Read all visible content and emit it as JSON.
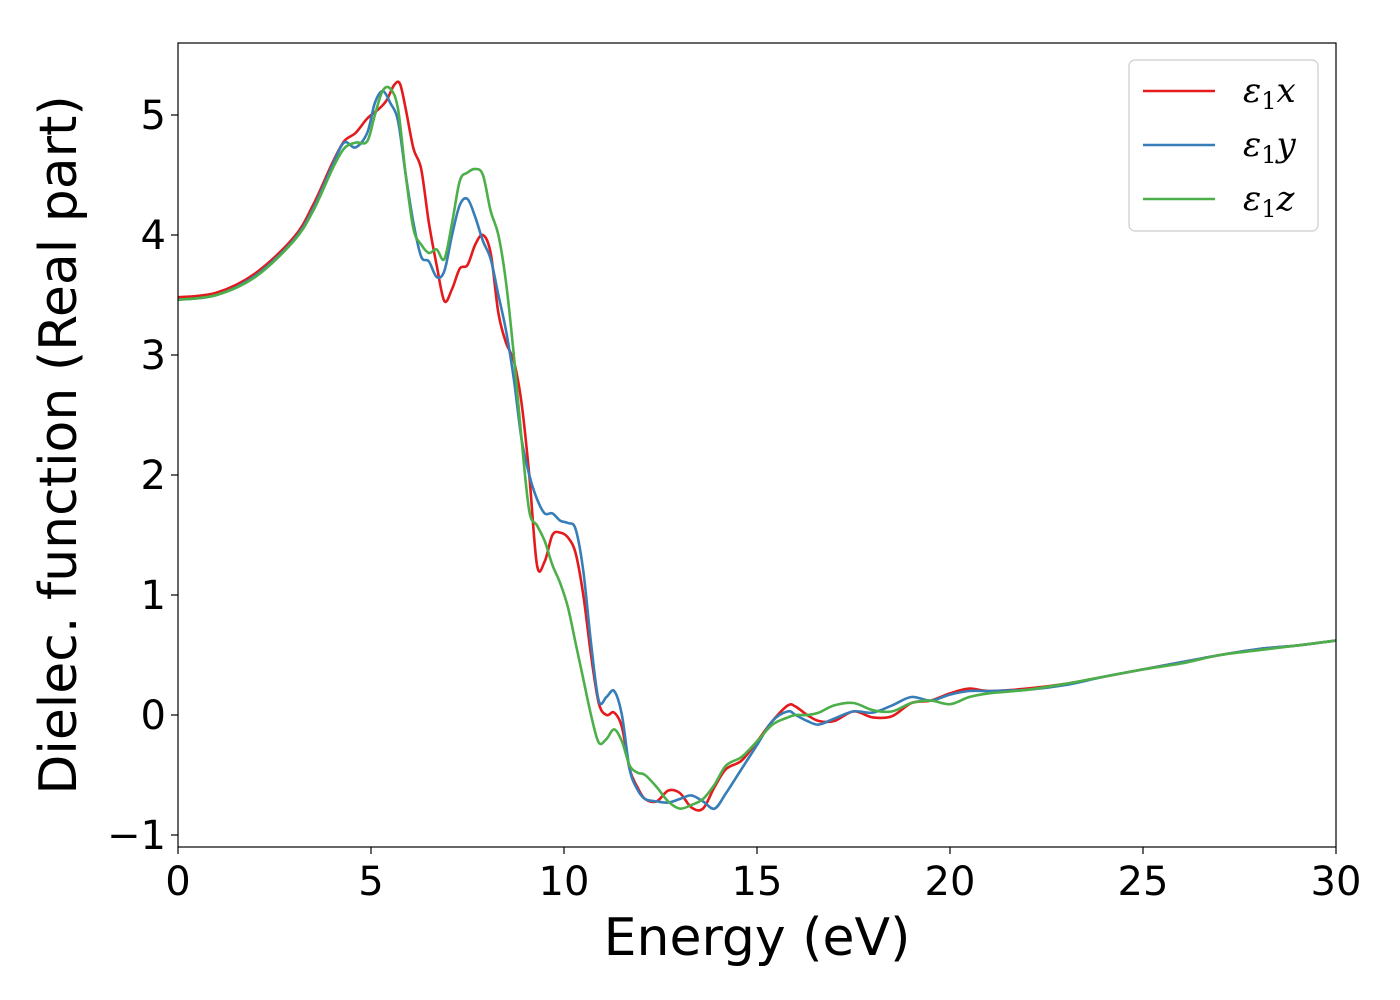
{
  "chart_data": {
    "type": "line",
    "title": "",
    "xlabel": "Energy (eV)",
    "ylabel": "Dielec. function (Real part)",
    "xlim": [
      0,
      30
    ],
    "ylim": [
      -1.1,
      5.6
    ],
    "xticks": [
      0,
      5,
      10,
      15,
      20,
      25,
      30
    ],
    "yticks": [
      -1,
      0,
      1,
      2,
      3,
      4,
      5
    ],
    "xtick_labels": [
      "0",
      "5",
      "10",
      "15",
      "20",
      "25",
      "30"
    ],
    "ytick_labels": [
      "−1",
      "0",
      "1",
      "2",
      "3",
      "4",
      "5"
    ],
    "grid": false,
    "legend_position": "top-right",
    "series": [
      {
        "name": "ε₁x",
        "legend_main": "ε",
        "legend_sub": "1",
        "legend_var": "x",
        "color": "#e41a1c",
        "x": [
          0,
          1,
          2,
          3,
          3.5,
          4,
          4.3,
          4.6,
          4.9,
          5.2,
          5.4,
          5.6,
          5.75,
          5.9,
          6.1,
          6.3,
          6.5,
          6.7,
          6.9,
          7.1,
          7.3,
          7.5,
          7.7,
          7.9,
          8.1,
          8.3,
          8.5,
          8.7,
          8.9,
          9.1,
          9.3,
          9.5,
          9.7,
          9.9,
          10.1,
          10.3,
          10.5,
          10.7,
          10.9,
          11.1,
          11.3,
          11.5,
          11.7,
          11.9,
          12.1,
          12.4,
          12.7,
          13.0,
          13.3,
          13.6,
          13.9,
          14.2,
          14.6,
          15.0,
          15.4,
          15.8,
          16.0,
          16.3,
          16.6,
          17.0,
          17.5,
          18.0,
          18.5,
          19.0,
          19.5,
          20.0,
          20.5,
          21.0,
          22.0,
          23.0,
          24.0,
          25.0,
          26.0,
          27.0,
          28.0,
          29.0,
          30.0
        ],
        "y": [
          3.48,
          3.52,
          3.68,
          3.98,
          4.25,
          4.6,
          4.78,
          4.85,
          4.97,
          5.05,
          5.12,
          5.25,
          5.26,
          5.05,
          4.72,
          4.55,
          4.1,
          3.75,
          3.45,
          3.55,
          3.72,
          3.75,
          3.92,
          4.0,
          3.85,
          3.35,
          3.1,
          2.95,
          2.6,
          2.0,
          1.25,
          1.28,
          1.5,
          1.52,
          1.48,
          1.35,
          1.0,
          0.5,
          0.1,
          0.0,
          0.02,
          -0.1,
          -0.45,
          -0.6,
          -0.7,
          -0.72,
          -0.63,
          -0.65,
          -0.77,
          -0.78,
          -0.6,
          -0.45,
          -0.38,
          -0.22,
          -0.05,
          0.08,
          0.07,
          0.0,
          -0.05,
          -0.05,
          0.03,
          -0.02,
          -0.01,
          0.1,
          0.12,
          0.18,
          0.22,
          0.2,
          0.22,
          0.26,
          0.32,
          0.38,
          0.44,
          0.5,
          0.55,
          0.58,
          0.62
        ]
      },
      {
        "name": "ε₁y",
        "legend_main": "ε",
        "legend_sub": "1",
        "legend_var": "y",
        "color": "#377eb8",
        "x": [
          0,
          1,
          2,
          3,
          3.5,
          4,
          4.3,
          4.6,
          4.9,
          5.1,
          5.3,
          5.5,
          5.7,
          5.9,
          6.1,
          6.3,
          6.5,
          6.7,
          6.9,
          7.1,
          7.3,
          7.5,
          7.7,
          7.9,
          8.1,
          8.3,
          8.5,
          8.7,
          8.9,
          9.1,
          9.3,
          9.5,
          9.7,
          9.9,
          10.1,
          10.3,
          10.5,
          10.7,
          10.9,
          11.1,
          11.3,
          11.5,
          11.7,
          11.9,
          12.1,
          12.4,
          12.7,
          13.0,
          13.3,
          13.6,
          13.9,
          14.2,
          14.6,
          15.0,
          15.4,
          15.8,
          16.0,
          16.3,
          16.6,
          17.0,
          17.5,
          18.0,
          18.5,
          19.0,
          19.5,
          20.0,
          20.5,
          21.0,
          22.0,
          23.0,
          24.0,
          25.0,
          26.0,
          27.0,
          28.0,
          29.0,
          30.0
        ],
        "y": [
          3.46,
          3.5,
          3.66,
          3.96,
          4.22,
          4.58,
          4.77,
          4.73,
          4.85,
          5.1,
          5.2,
          5.1,
          4.95,
          4.5,
          4.1,
          3.82,
          3.78,
          3.65,
          3.7,
          4.0,
          4.25,
          4.3,
          4.15,
          3.95,
          3.8,
          3.5,
          3.2,
          2.8,
          2.3,
          2.0,
          1.8,
          1.68,
          1.68,
          1.62,
          1.6,
          1.55,
          1.2,
          0.6,
          0.12,
          0.15,
          0.2,
          0.0,
          -0.45,
          -0.62,
          -0.7,
          -0.72,
          -0.73,
          -0.7,
          -0.67,
          -0.72,
          -0.78,
          -0.65,
          -0.45,
          -0.25,
          -0.05,
          0.03,
          0.0,
          -0.05,
          -0.08,
          -0.03,
          0.03,
          0.02,
          0.08,
          0.15,
          0.12,
          0.17,
          0.2,
          0.2,
          0.21,
          0.25,
          0.32,
          0.38,
          0.44,
          0.5,
          0.55,
          0.58,
          0.62
        ]
      },
      {
        "name": "ε₁z",
        "legend_main": "ε",
        "legend_sub": "1",
        "legend_var": "z",
        "color": "#4daf4a",
        "x": [
          0,
          1,
          2,
          3,
          3.5,
          4,
          4.3,
          4.6,
          4.9,
          5.1,
          5.3,
          5.5,
          5.7,
          5.9,
          6.1,
          6.3,
          6.5,
          6.7,
          6.9,
          7.1,
          7.3,
          7.5,
          7.7,
          7.9,
          8.1,
          8.3,
          8.5,
          8.7,
          8.9,
          9.1,
          9.3,
          9.5,
          9.7,
          9.9,
          10.1,
          10.3,
          10.5,
          10.7,
          10.9,
          11.1,
          11.3,
          11.5,
          11.7,
          11.9,
          12.1,
          12.4,
          12.7,
          13.0,
          13.3,
          13.6,
          13.9,
          14.2,
          14.6,
          15.0,
          15.4,
          15.8,
          16.0,
          16.3,
          16.6,
          17.0,
          17.5,
          18.0,
          18.5,
          19.0,
          19.5,
          20.0,
          20.5,
          21.0,
          22.0,
          23.0,
          24.0,
          25.0,
          26.0,
          27.0,
          28.0,
          29.0,
          30.0
        ],
        "y": [
          3.46,
          3.5,
          3.65,
          3.95,
          4.2,
          4.55,
          4.72,
          4.77,
          4.78,
          5.0,
          5.2,
          5.22,
          5.05,
          4.5,
          4.05,
          3.92,
          3.85,
          3.88,
          3.8,
          4.1,
          4.45,
          4.52,
          4.55,
          4.5,
          4.2,
          4.0,
          3.6,
          3.0,
          2.3,
          1.7,
          1.58,
          1.45,
          1.25,
          1.1,
          0.9,
          0.6,
          0.3,
          0.0,
          -0.23,
          -0.2,
          -0.12,
          -0.22,
          -0.42,
          -0.48,
          -0.5,
          -0.6,
          -0.72,
          -0.78,
          -0.75,
          -0.7,
          -0.58,
          -0.42,
          -0.35,
          -0.22,
          -0.08,
          -0.02,
          0.0,
          0.0,
          0.02,
          0.08,
          0.1,
          0.04,
          0.03,
          0.1,
          0.12,
          0.09,
          0.15,
          0.18,
          0.21,
          0.26,
          0.32,
          0.38,
          0.43,
          0.5,
          0.54,
          0.58,
          0.62
        ]
      }
    ]
  }
}
